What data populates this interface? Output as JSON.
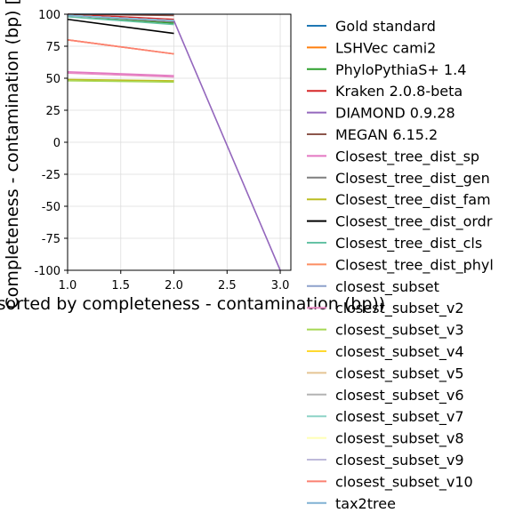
{
  "chart_data": {
    "type": "line",
    "title": "",
    "xlabel": "bin (sorted by completeness - contamination (bp))",
    "ylabel": "Completeness - contamination (bp) [%]",
    "xlim": [
      1.0,
      3.1
    ],
    "ylim": [
      -100,
      100
    ],
    "xticks": [
      1.0,
      1.5,
      2.0,
      2.5,
      3.0
    ],
    "xtick_labels": [
      "1.0",
      "1.5",
      "2.0",
      "2.5",
      "3.0"
    ],
    "yticks": [
      100,
      75,
      50,
      25,
      0,
      -25,
      -50,
      -75,
      -100
    ],
    "ytick_labels": [
      "100",
      "75",
      "50",
      "25",
      "0",
      "-25",
      "-50",
      "-75",
      "-100"
    ],
    "grid": true,
    "legend_position": "right, outside plot",
    "series": [
      {
        "name": "Gold standard",
        "color": "#1f77b4",
        "x": [
          1,
          2
        ],
        "y": [
          100,
          100
        ]
      },
      {
        "name": "LSHVec cami2",
        "color": "#ff7f0e",
        "x": [
          1,
          2
        ],
        "y": [
          80,
          69
        ]
      },
      {
        "name": "PhyloPythiaS+ 1.4",
        "color": "#2ca02c",
        "x": [
          1,
          2
        ],
        "y": [
          99,
          93
        ]
      },
      {
        "name": "Kraken 2.0.8-beta",
        "color": "#d62728",
        "x": [
          1,
          2
        ],
        "y": [
          100,
          96
        ]
      },
      {
        "name": "DIAMOND 0.9.28",
        "color": "#9467bd",
        "x": [
          1,
          2,
          3
        ],
        "y": [
          99,
          95,
          -100
        ]
      },
      {
        "name": "MEGAN 6.15.2",
        "color": "#8c564b",
        "x": [
          1,
          2
        ],
        "y": [
          100,
          99
        ]
      },
      {
        "name": "Closest_tree_dist_sp",
        "color": "#e377c2",
        "x": [
          1,
          2
        ],
        "y": [
          55,
          52
        ]
      },
      {
        "name": "Closest_tree_dist_gen",
        "color": "#7f7f7f",
        "x": [
          1,
          2
        ],
        "y": [
          99,
          94
        ]
      },
      {
        "name": "Closest_tree_dist_fam",
        "color": "#bcbd22",
        "x": [
          1,
          2
        ],
        "y": [
          49,
          48
        ]
      },
      {
        "name": "Closest_tree_dist_ordr",
        "color": "#000000",
        "x": [
          1,
          2
        ],
        "y": [
          96,
          85
        ]
      },
      {
        "name": "Closest_tree_dist_cls",
        "color": "#66c2a5",
        "x": [
          1,
          2
        ],
        "y": [
          98,
          92
        ]
      },
      {
        "name": "Closest_tree_dist_phyl",
        "color": "#fc8d62",
        "x": [
          1,
          2
        ],
        "y": [
          80,
          69
        ]
      },
      {
        "name": "closest_subset",
        "color": "#8da0cb",
        "x": [
          1,
          2
        ],
        "y": [
          99,
          95
        ]
      },
      {
        "name": "closest_subset_v2",
        "color": "#e78ac3",
        "x": [
          1,
          2
        ],
        "y": [
          54,
          51
        ]
      },
      {
        "name": "closest_subset_v3",
        "color": "#a6d854",
        "x": [
          1,
          2
        ],
        "y": [
          48,
          47
        ]
      },
      {
        "name": "closest_subset_v4",
        "color": "#ffd92f",
        "x": [
          1,
          2
        ],
        "y": [
          99,
          95
        ]
      },
      {
        "name": "closest_subset_v5",
        "color": "#e5c494",
        "x": [
          1,
          2
        ],
        "y": [
          99,
          95
        ]
      },
      {
        "name": "closest_subset_v6",
        "color": "#b3b3b3",
        "x": [
          1,
          2
        ],
        "y": [
          99,
          95
        ]
      },
      {
        "name": "closest_subset_v7",
        "color": "#8dd3c7",
        "x": [
          1,
          2
        ],
        "y": [
          99,
          95
        ]
      },
      {
        "name": "closest_subset_v8",
        "color": "#ffffb3",
        "x": [
          1,
          2
        ],
        "y": [
          99,
          95
        ]
      },
      {
        "name": "closest_subset_v9",
        "color": "#bebada",
        "x": [
          1,
          2
        ],
        "y": [
          99,
          95
        ]
      },
      {
        "name": "closest_subset_v10",
        "color": "#fb8072",
        "x": [
          1,
          2
        ],
        "y": [
          80,
          69
        ]
      },
      {
        "name": "tax2tree",
        "color": "#80b1d3",
        "x": [
          1,
          2
        ],
        "y": [
          99,
          95
        ]
      }
    ]
  }
}
